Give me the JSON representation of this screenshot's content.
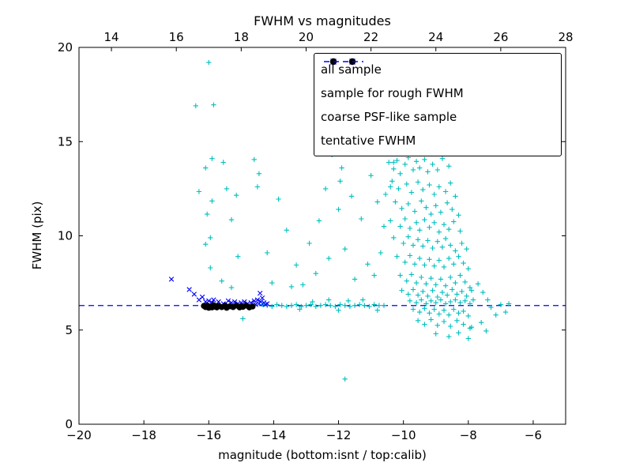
{
  "chart_data": {
    "type": "scatter",
    "title": "FWHM vs magnitudes",
    "xlabel": "magnitude (bottom:isnt / top:calib)",
    "ylabel": "FWHM (pix)",
    "x_axis_bottom": {
      "min": -20,
      "max": -5,
      "ticks": [
        -20,
        -18,
        -16,
        -14,
        -12,
        -10,
        -8,
        -6
      ]
    },
    "x_axis_top": {
      "min": 13,
      "max": 28,
      "ticks": [
        14,
        16,
        18,
        20,
        22,
        24,
        26,
        28
      ]
    },
    "y_axis": {
      "min": 0,
      "max": 20,
      "ticks": [
        0,
        5,
        10,
        15,
        20
      ]
    },
    "grid": false,
    "legend_position": "upper right",
    "tentative_fwhm": 6.3,
    "series": [
      {
        "name": "all sample",
        "marker": "plus",
        "color": "#00bfbf",
        "points": [
          [
            -16,
            19.2
          ],
          [
            -16.4,
            16.9
          ],
          [
            -15.85,
            16.95
          ],
          [
            -16.1,
            13.6
          ],
          [
            -15.9,
            14.1
          ],
          [
            -15.55,
            13.9
          ],
          [
            -16.3,
            12.35
          ],
          [
            -15.9,
            11.85
          ],
          [
            -16.05,
            11.15
          ],
          [
            -15.45,
            12.5
          ],
          [
            -15.15,
            12.15
          ],
          [
            -14.6,
            14.05
          ],
          [
            -14.45,
            13.3
          ],
          [
            -14.5,
            12.6
          ],
          [
            -13.85,
            11.95
          ],
          [
            -15.3,
            10.85
          ],
          [
            -15.95,
            9.9
          ],
          [
            -16.1,
            9.55
          ],
          [
            -15.1,
            8.9
          ],
          [
            -15.95,
            8.3
          ],
          [
            -15.6,
            7.6
          ],
          [
            -15.3,
            7.25
          ],
          [
            -14.05,
            7.5
          ],
          [
            -13.45,
            7.3
          ],
          [
            -13.3,
            8.45
          ],
          [
            -14.95,
            5.6
          ],
          [
            -14.2,
            9.1
          ],
          [
            -13.6,
            10.3
          ],
          [
            -12.2,
            14.3
          ],
          [
            -12.05,
            14.5
          ],
          [
            -11.9,
            13.6
          ],
          [
            -11.95,
            12.9
          ],
          [
            -12.4,
            12.5
          ],
          [
            -11.6,
            12.1
          ],
          [
            -12,
            11.4
          ],
          [
            -12.6,
            10.8
          ],
          [
            -11.3,
            10.9
          ],
          [
            -12.9,
            9.6
          ],
          [
            -11.8,
            9.3
          ],
          [
            -12.3,
            8.8
          ],
          [
            -11.1,
            8.5
          ],
          [
            -12.7,
            8
          ],
          [
            -11.5,
            7.7
          ],
          [
            -13.1,
            7.4
          ],
          [
            -10.9,
            7.9
          ],
          [
            -10.7,
            9.1
          ],
          [
            -10.6,
            10.5
          ],
          [
            -10.8,
            11.8
          ],
          [
            -10.4,
            12.6
          ],
          [
            -11,
            13.2
          ],
          [
            -10.3,
            13.9
          ],
          [
            -10.55,
            12.2
          ],
          [
            -11.8,
            2.4
          ],
          [
            -14.6,
            6.3
          ],
          [
            -14.35,
            6.35
          ],
          [
            -14.2,
            6.3
          ],
          [
            -14.05,
            6.25
          ],
          [
            -13.9,
            6.35
          ],
          [
            -13.75,
            6.3
          ],
          [
            -13.6,
            6.25
          ],
          [
            -13.45,
            6.3
          ],
          [
            -13.3,
            6.35
          ],
          [
            -13.15,
            6.25
          ],
          [
            -13,
            6.3
          ],
          [
            -12.85,
            6.35
          ],
          [
            -12.7,
            6.25
          ],
          [
            -12.55,
            6.3
          ],
          [
            -12.4,
            6.35
          ],
          [
            -12.25,
            6.3
          ],
          [
            -12.1,
            6.25
          ],
          [
            -11.95,
            6.35
          ],
          [
            -11.8,
            6.3
          ],
          [
            -11.65,
            6.25
          ],
          [
            -11.5,
            6.3
          ],
          [
            -11.35,
            6.35
          ],
          [
            -11.2,
            6.3
          ],
          [
            -11.05,
            6.25
          ],
          [
            -10.9,
            6.35
          ],
          [
            -10.75,
            6.3
          ],
          [
            -10.6,
            6.3
          ],
          [
            -12.3,
            6.6
          ],
          [
            -11.7,
            6.55
          ],
          [
            -12.8,
            6.5
          ],
          [
            -11.25,
            6.6
          ],
          [
            -12,
            6.05
          ],
          [
            -13.2,
            6.1
          ],
          [
            -10.8,
            6.05
          ],
          [
            -10.45,
            13.9
          ],
          [
            -10.3,
            13.55
          ],
          [
            -10.2,
            14
          ],
          [
            -10.1,
            13.3
          ],
          [
            -9.95,
            13.8
          ],
          [
            -9.85,
            14.15
          ],
          [
            -9.7,
            13.5
          ],
          [
            -9.6,
            13.95
          ],
          [
            -9.5,
            13.6
          ],
          [
            -9.35,
            14.05
          ],
          [
            -9.25,
            13.4
          ],
          [
            -9.1,
            13.8
          ],
          [
            -8.95,
            13.5
          ],
          [
            -8.8,
            14.1
          ],
          [
            -8.6,
            13.7
          ],
          [
            -10.35,
            12.9
          ],
          [
            -10.15,
            12.5
          ],
          [
            -9.9,
            12.75
          ],
          [
            -9.75,
            12.3
          ],
          [
            -9.55,
            12.85
          ],
          [
            -9.4,
            12.45
          ],
          [
            -9.2,
            12.7
          ],
          [
            -9.05,
            12.2
          ],
          [
            -8.9,
            12.6
          ],
          [
            -8.7,
            12.35
          ],
          [
            -8.55,
            12.8
          ],
          [
            -8.4,
            12.1
          ],
          [
            -10.25,
            11.8
          ],
          [
            -10.05,
            11.45
          ],
          [
            -9.85,
            11.7
          ],
          [
            -9.65,
            11.3
          ],
          [
            -9.45,
            11.85
          ],
          [
            -9.3,
            11.5
          ],
          [
            -9.15,
            11.15
          ],
          [
            -9,
            11.6
          ],
          [
            -8.85,
            11.25
          ],
          [
            -8.65,
            11.75
          ],
          [
            -8.5,
            11.4
          ],
          [
            -8.3,
            11.1
          ],
          [
            -10.4,
            10.8
          ],
          [
            -10.1,
            10.5
          ],
          [
            -9.95,
            10.9
          ],
          [
            -9.8,
            10.4
          ],
          [
            -9.6,
            10.7
          ],
          [
            -9.5,
            10.3
          ],
          [
            -9.35,
            10.85
          ],
          [
            -9.2,
            10.45
          ],
          [
            -9.05,
            10.7
          ],
          [
            -8.9,
            10.2
          ],
          [
            -8.75,
            10.6
          ],
          [
            -8.6,
            10.35
          ],
          [
            -8.45,
            10.75
          ],
          [
            -8.25,
            10.25
          ],
          [
            -10.3,
            9.9
          ],
          [
            -10,
            9.6
          ],
          [
            -9.85,
            9.95
          ],
          [
            -9.7,
            9.5
          ],
          [
            -9.55,
            9.8
          ],
          [
            -9.4,
            9.45
          ],
          [
            -9.25,
            9.75
          ],
          [
            -9.1,
            9.35
          ],
          [
            -8.95,
            9.7
          ],
          [
            -8.8,
            9.4
          ],
          [
            -8.7,
            9.85
          ],
          [
            -8.55,
            9.5
          ],
          [
            -8.4,
            9.2
          ],
          [
            -8.2,
            9.6
          ],
          [
            -8.05,
            9.3
          ],
          [
            -10.2,
            8.9
          ],
          [
            -9.95,
            8.6
          ],
          [
            -9.8,
            8.95
          ],
          [
            -9.65,
            8.5
          ],
          [
            -9.5,
            8.8
          ],
          [
            -9.35,
            8.45
          ],
          [
            -9.2,
            8.75
          ],
          [
            -9.05,
            8.4
          ],
          [
            -8.9,
            8.7
          ],
          [
            -8.75,
            8.35
          ],
          [
            -8.6,
            8.8
          ],
          [
            -8.45,
            8.5
          ],
          [
            -8.3,
            8.9
          ],
          [
            -8.15,
            8.55
          ],
          [
            -8,
            8.25
          ],
          [
            -10.1,
            7.9
          ],
          [
            -9.9,
            7.6
          ],
          [
            -9.75,
            7.95
          ],
          [
            -9.6,
            7.5
          ],
          [
            -9.45,
            7.8
          ],
          [
            -9.3,
            7.45
          ],
          [
            -9.15,
            7.75
          ],
          [
            -9,
            7.4
          ],
          [
            -8.85,
            7.7
          ],
          [
            -8.7,
            7.35
          ],
          [
            -8.55,
            7.8
          ],
          [
            -8.4,
            7.5
          ],
          [
            -8.25,
            7.9
          ],
          [
            -8.1,
            7.55
          ],
          [
            -7.95,
            7.25
          ],
          [
            -10.05,
            7.1
          ],
          [
            -9.85,
            6.9
          ],
          [
            -9.7,
            7.15
          ],
          [
            -9.55,
            6.85
          ],
          [
            -9.4,
            7.05
          ],
          [
            -9.25,
            6.8
          ],
          [
            -9.1,
            7.1
          ],
          [
            -8.95,
            6.75
          ],
          [
            -8.8,
            7
          ],
          [
            -8.65,
            6.85
          ],
          [
            -8.5,
            7.15
          ],
          [
            -8.35,
            6.9
          ],
          [
            -8.2,
            7.05
          ],
          [
            -8.05,
            6.8
          ],
          [
            -7.9,
            7.1
          ],
          [
            -9.8,
            6.55
          ],
          [
            -9.6,
            6.45
          ],
          [
            -9.45,
            6.6
          ],
          [
            -9.3,
            6.4
          ],
          [
            -9.15,
            6.55
          ],
          [
            -9,
            6.45
          ],
          [
            -8.85,
            6.6
          ],
          [
            -8.7,
            6.4
          ],
          [
            -8.55,
            6.5
          ],
          [
            -8.4,
            6.6
          ],
          [
            -8.25,
            6.45
          ],
          [
            -8.1,
            6.55
          ],
          [
            -7.95,
            6.4
          ],
          [
            -7.85,
            6.6
          ],
          [
            -9.7,
            6.1
          ],
          [
            -9.5,
            5.95
          ],
          [
            -9.35,
            6.15
          ],
          [
            -9.2,
            5.9
          ],
          [
            -9.05,
            6.1
          ],
          [
            -8.9,
            5.85
          ],
          [
            -8.75,
            6.05
          ],
          [
            -8.6,
            5.8
          ],
          [
            -8.45,
            6.1
          ],
          [
            -8.3,
            5.9
          ],
          [
            -8.15,
            6
          ],
          [
            -8,
            5.75
          ],
          [
            -9.55,
            5.5
          ],
          [
            -9.35,
            5.3
          ],
          [
            -9.15,
            5.55
          ],
          [
            -8.95,
            5.25
          ],
          [
            -8.75,
            5.45
          ],
          [
            -8.55,
            5.2
          ],
          [
            -8.35,
            5.5
          ],
          [
            -8.15,
            5.3
          ],
          [
            -7.95,
            5.1
          ],
          [
            -9,
            4.8
          ],
          [
            -8.6,
            4.65
          ],
          [
            -8.3,
            4.85
          ],
          [
            -7.7,
            7.45
          ],
          [
            -7.55,
            7
          ],
          [
            -7.4,
            6.6
          ],
          [
            -7.3,
            6.2
          ],
          [
            -7.15,
            5.8
          ],
          [
            -7,
            6.35
          ],
          [
            -6.85,
            5.95
          ],
          [
            -6.75,
            6.4
          ],
          [
            -7.6,
            5.4
          ],
          [
            -7.9,
            5.15
          ],
          [
            -7.45,
            4.95
          ],
          [
            -8,
            4.55
          ]
        ]
      },
      {
        "name": "sample for rough FWHM",
        "marker": "x",
        "color": "#0000ff",
        "points": [
          [
            -17.15,
            7.7
          ],
          [
            -16.6,
            7.15
          ],
          [
            -16.45,
            6.9
          ],
          [
            -16.3,
            6.6
          ],
          [
            -16.2,
            6.75
          ],
          [
            -16.1,
            6.5
          ],
          [
            -16,
            6.55
          ],
          [
            -15.9,
            6.45
          ],
          [
            -15.85,
            6.6
          ],
          [
            -15.7,
            6.5
          ],
          [
            -15.55,
            6.4
          ],
          [
            -15.4,
            6.55
          ],
          [
            -15.3,
            6.45
          ],
          [
            -15.2,
            6.5
          ],
          [
            -15.1,
            6.4
          ],
          [
            -15,
            6.45
          ],
          [
            -14.9,
            6.5
          ],
          [
            -14.8,
            6.4
          ],
          [
            -14.7,
            6.45
          ],
          [
            -14.6,
            6.55
          ],
          [
            -14.55,
            6.35
          ],
          [
            -14.5,
            6.6
          ],
          [
            -14.45,
            6.4
          ],
          [
            -14.42,
            6.95
          ],
          [
            -14.4,
            6.5
          ],
          [
            -14.35,
            6.7
          ],
          [
            -14.3,
            6.45
          ],
          [
            -14.25,
            6.35
          ],
          [
            -14.2,
            6.4
          ]
        ]
      },
      {
        "name": "coarse PSF-like sample",
        "marker": "dot",
        "color": "#000000",
        "points": [
          [
            -16.15,
            6.28
          ],
          [
            -16.1,
            6.22
          ],
          [
            -16.05,
            6.3
          ],
          [
            -16,
            6.18
          ],
          [
            -15.95,
            6.25
          ],
          [
            -15.9,
            6.2
          ],
          [
            -15.85,
            6.32
          ],
          [
            -15.8,
            6.24
          ],
          [
            -15.75,
            6.2
          ],
          [
            -15.7,
            6.28
          ],
          [
            -15.6,
            6.22
          ],
          [
            -15.5,
            6.3
          ],
          [
            -15.45,
            6.18
          ],
          [
            -15.35,
            6.26
          ],
          [
            -15.25,
            6.22
          ],
          [
            -15.15,
            6.3
          ],
          [
            -15.05,
            6.2
          ],
          [
            -15,
            6.27
          ],
          [
            -14.95,
            6.23
          ],
          [
            -14.85,
            6.3
          ],
          [
            -14.75,
            6.2
          ],
          [
            -14.65,
            6.25
          ]
        ]
      },
      {
        "name": "tentative FWHM",
        "marker": "dashed-line",
        "color": "#0000ff",
        "y": 6.3
      }
    ]
  }
}
